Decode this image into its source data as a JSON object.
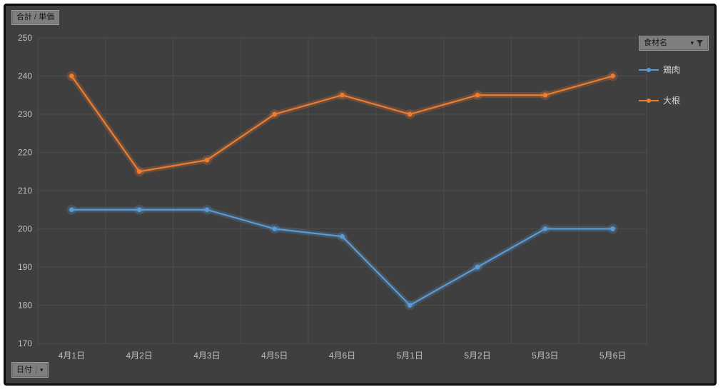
{
  "fields": {
    "value_button": "合計 / 単価",
    "axis_button": "日付",
    "legend_button": "食材名"
  },
  "colors": {
    "background": "#3f3f3f",
    "gridline": "#4d4d4d",
    "axis_text": "#bfbfbf",
    "legend_text": "#d9d9d9"
  },
  "chart_data": {
    "type": "line",
    "title": "",
    "xlabel": "日付",
    "ylabel": "合計 / 単価",
    "categories": [
      "4月1日",
      "4月2日",
      "4月3日",
      "4月5日",
      "4月6日",
      "5月1日",
      "5月2日",
      "5月3日",
      "5月6日"
    ],
    "series": [
      {
        "name": "鶏肉",
        "color": "#5B9BD5",
        "values": [
          205,
          205,
          205,
          200,
          198,
          180,
          190,
          200,
          200
        ]
      },
      {
        "name": "大根",
        "color": "#ED7D31",
        "values": [
          240,
          215,
          218,
          230,
          235,
          230,
          235,
          235,
          240
        ]
      }
    ],
    "ylim": [
      170,
      250
    ],
    "ytick_step": 10,
    "grid": true,
    "legend_position": "right"
  }
}
